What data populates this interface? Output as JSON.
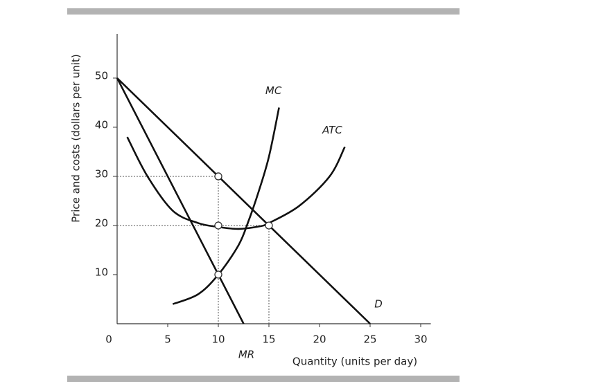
{
  "chart_data": {
    "type": "line",
    "x_label": "Quantity (units per day)",
    "y_label": "Price and costs (dollars per unit)",
    "origin_label": "0",
    "xlim": [
      0,
      31
    ],
    "ylim": [
      0,
      59
    ],
    "xticks": [
      5,
      10,
      15,
      20,
      25,
      30
    ],
    "yticks": [
      10,
      20,
      30,
      40,
      50
    ],
    "series": [
      {
        "name": "D",
        "color": "#111111",
        "x": [
          0,
          25
        ],
        "values": [
          50,
          0
        ]
      },
      {
        "name": "MR",
        "color": "#111111",
        "x": [
          0,
          12.5
        ],
        "values": [
          50,
          0
        ]
      },
      {
        "name": "MC",
        "color": "#111111",
        "x": [
          5.5,
          8,
          10,
          12,
          13,
          14,
          15,
          16
        ],
        "values": [
          4,
          6,
          10,
          16,
          21,
          27,
          34,
          44
        ]
      },
      {
        "name": "ATC",
        "color": "#111111",
        "x": [
          1,
          3,
          5.5,
          8,
          10,
          12,
          14,
          15,
          18,
          21,
          22.5
        ],
        "values": [
          38,
          30,
          23,
          20.5,
          19.7,
          19.3,
          19.8,
          20.5,
          24,
          30,
          36
        ]
      }
    ],
    "points": [
      {
        "x": 10,
        "y": 30,
        "guide": true
      },
      {
        "x": 10,
        "y": 20,
        "guide": false
      },
      {
        "x": 10,
        "y": 10,
        "guide": false
      },
      {
        "x": 15,
        "y": 20,
        "guide": true
      }
    ]
  }
}
